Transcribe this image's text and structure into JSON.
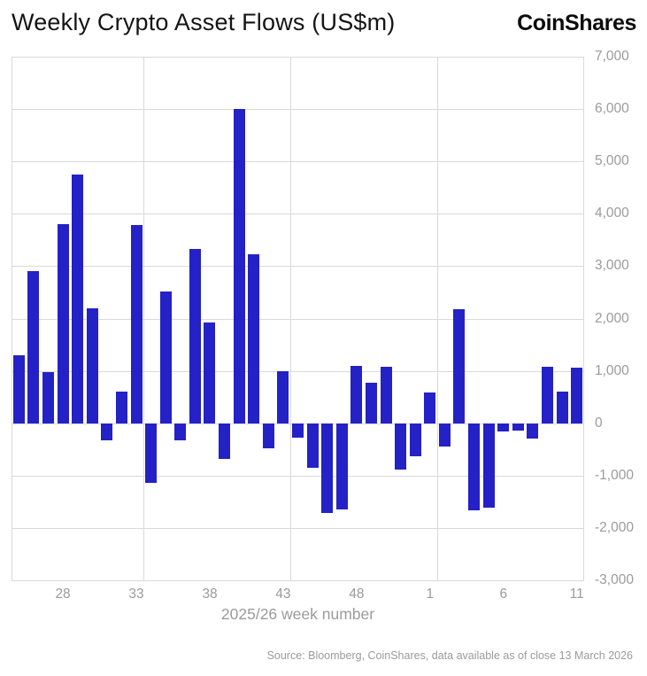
{
  "header": {
    "title": "Weekly Crypto Asset Flows (US$m)",
    "brand": "CoinShares"
  },
  "footer": {
    "source": "Source: Bloomberg, CoinShares, data available as of close 13 March 2026"
  },
  "chart_data": {
    "type": "bar",
    "title": "Weekly Crypto Asset Flows (US$m)",
    "xlabel": "2025/26 week number",
    "ylabel": "",
    "ylim": [
      -3000,
      7000
    ],
    "ytick_step": 1000,
    "grid": true,
    "legend": "none",
    "bar_color": "#2421C6",
    "gridline_color": "#d9d9d9",
    "tick_label_color": "#9b9b9b",
    "categories": [
      25,
      26,
      27,
      28,
      29,
      30,
      31,
      32,
      33,
      34,
      35,
      36,
      37,
      38,
      39,
      40,
      41,
      42,
      43,
      44,
      45,
      46,
      47,
      48,
      49,
      50,
      51,
      52,
      1,
      2,
      3,
      4,
      5,
      6,
      7,
      8,
      9,
      10,
      11
    ],
    "values": [
      1300,
      2900,
      980,
      3800,
      4750,
      2200,
      -330,
      600,
      3790,
      -1140,
      2520,
      -320,
      3330,
      1930,
      -690,
      6010,
      3230,
      -480,
      990,
      -270,
      -850,
      -1720,
      -1640,
      1100,
      780,
      1080,
      -890,
      -630,
      580,
      -440,
      2180,
      -1660,
      -1620,
      -160,
      -140,
      -300,
      1080,
      600,
      1060
    ],
    "x_tick_weeks": [
      28,
      33,
      38,
      43,
      48,
      1,
      6,
      11
    ],
    "vlines_after_index": [
      9,
      19,
      29
    ]
  }
}
